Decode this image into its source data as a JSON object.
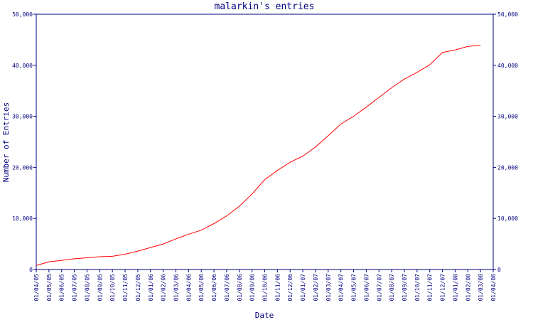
{
  "chart_data": {
    "type": "line",
    "title": "malarkin's entries",
    "xlabel": "Date",
    "ylabel": "Number of Entries",
    "ylim": [
      0,
      50000
    ],
    "y_ticks": [
      0,
      10000,
      20000,
      30000,
      40000,
      50000
    ],
    "y_tick_labels": [
      "0",
      "10,000",
      "20,000",
      "30,000",
      "40,000",
      "50,000"
    ],
    "x_tick_labels": [
      "01/04/05",
      "01/05/05",
      "01/06/05",
      "01/07/05",
      "01/08/05",
      "01/09/05",
      "01/10/05",
      "01/11/05",
      "01/12/05",
      "01/01/06",
      "01/02/06",
      "01/03/06",
      "01/04/06",
      "01/05/06",
      "01/06/06",
      "01/07/06",
      "01/08/06",
      "01/09/06",
      "01/10/06",
      "01/11/06",
      "01/12/06",
      "01/01/07",
      "01/02/07",
      "01/03/07",
      "01/04/07",
      "01/05/07",
      "01/06/07",
      "01/07/07",
      "01/08/07",
      "01/09/07",
      "01/10/07",
      "01/11/07",
      "01/12/07",
      "01/01/08",
      "01/02/08",
      "01/03/08",
      "01/04/08"
    ],
    "grid": false,
    "legend": "none",
    "line_color": "#ff0000",
    "axis_color": "#000080",
    "series": [
      {
        "x": [
          "01/04/05",
          "01/05/05",
          "01/06/05",
          "01/07/05",
          "01/08/05",
          "01/09/05",
          "01/10/05",
          "01/11/05",
          "01/12/05",
          "01/01/06",
          "01/02/06",
          "01/03/06",
          "01/04/06",
          "01/05/06",
          "01/06/06",
          "01/07/06",
          "01/08/06",
          "01/09/06",
          "01/10/06",
          "01/11/06",
          "01/12/06",
          "01/01/07",
          "01/02/07",
          "01/03/07",
          "01/04/07",
          "01/05/07",
          "01/06/07",
          "01/07/07",
          "01/08/07",
          "01/09/07",
          "01/10/07",
          "01/11/07",
          "01/12/07",
          "01/01/08",
          "01/02/08",
          "01/03/08"
        ],
        "values": [
          800,
          1500,
          1800,
          2100,
          2300,
          2500,
          2600,
          3000,
          3600,
          4300,
          5000,
          6000,
          6900,
          7700,
          9000,
          10500,
          12400,
          14800,
          17600,
          19400,
          21000,
          22200,
          24000,
          26200,
          28500,
          30000,
          31800,
          33700,
          35600,
          37300,
          38600,
          40100,
          42500,
          43000,
          43700,
          43900
        ]
      }
    ]
  }
}
